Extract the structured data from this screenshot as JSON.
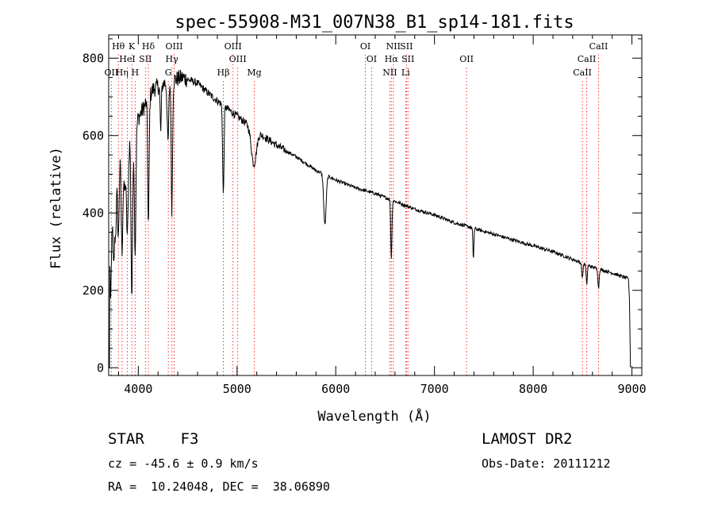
{
  "chart_data": {
    "type": "line",
    "title": "spec-55908-M31_007N38_B1_sp14-181.fits",
    "xlabel": "Wavelength (Å)",
    "ylabel": "Flux (relative)",
    "xlim": [
      3700,
      9100
    ],
    "ylim": [
      -20,
      860
    ],
    "xticks": [
      4000,
      5000,
      6000,
      7000,
      8000,
      9000
    ],
    "yticks": [
      0,
      200,
      400,
      600,
      800
    ],
    "grid": false,
    "line_color": "#000000",
    "marker_color": "#ff0000",
    "continuum": [
      [
        3700,
        380
      ],
      [
        3780,
        520
      ],
      [
        3850,
        580
      ],
      [
        3950,
        620
      ],
      [
        4050,
        670
      ],
      [
        4150,
        720
      ],
      [
        4300,
        740
      ],
      [
        4450,
        750
      ],
      [
        4600,
        735
      ],
      [
        4750,
        700
      ],
      [
        4900,
        670
      ],
      [
        5050,
        640
      ],
      [
        5200,
        610
      ],
      [
        5400,
        575
      ],
      [
        5600,
        545
      ],
      [
        5800,
        510
      ],
      [
        6000,
        485
      ],
      [
        6200,
        465
      ],
      [
        6400,
        450
      ],
      [
        6600,
        430
      ],
      [
        6800,
        410
      ],
      [
        7000,
        395
      ],
      [
        7200,
        375
      ],
      [
        7400,
        360
      ],
      [
        7600,
        345
      ],
      [
        7800,
        330
      ],
      [
        8000,
        315
      ],
      [
        8200,
        300
      ],
      [
        8400,
        280
      ],
      [
        8600,
        260
      ],
      [
        8800,
        245
      ],
      [
        8960,
        230
      ]
    ],
    "absorption": [
      [
        3720,
        240,
        8
      ],
      [
        3750,
        200,
        8
      ],
      [
        3770,
        150,
        8
      ],
      [
        3798,
        200,
        8
      ],
      [
        3835,
        260,
        8
      ],
      [
        3860,
        120,
        10
      ],
      [
        3889,
        250,
        10
      ],
      [
        3934,
        430,
        8
      ],
      [
        3968,
        330,
        8
      ],
      [
        4102,
        330,
        7
      ],
      [
        4227,
        120,
        6
      ],
      [
        4300,
        160,
        8
      ],
      [
        4340,
        330,
        7
      ],
      [
        4861,
        230,
        7
      ],
      [
        5170,
        90,
        25
      ],
      [
        5890,
        130,
        12
      ],
      [
        6563,
        150,
        6
      ],
      [
        7394,
        80,
        5
      ],
      [
        8498,
        40,
        6
      ],
      [
        8542,
        50,
        6
      ],
      [
        8662,
        50,
        6
      ]
    ],
    "lines": [
      {
        "name": "Hθ",
        "wavelength": 3798,
        "row": 1
      },
      {
        "name": "K",
        "wavelength": 3934,
        "row": 1
      },
      {
        "name": "Hδ",
        "wavelength": 4102,
        "row": 1
      },
      {
        "name": "OIII",
        "wavelength": 4363,
        "row": 1
      },
      {
        "name": "OIII",
        "wavelength": 4959,
        "row": 1
      },
      {
        "name": "OI",
        "wavelength": 6300,
        "row": 1
      },
      {
        "name": "NII",
        "wavelength": 6583,
        "row": 1
      },
      {
        "name": "SII",
        "wavelength": 6716,
        "row": 1
      },
      {
        "name": "CaII",
        "wavelength": 8662,
        "row": 1
      },
      {
        "name": "HeI",
        "wavelength": 3889,
        "row": 2
      },
      {
        "name": "SII",
        "wavelength": 4072,
        "row": 2
      },
      {
        "name": "Hγ",
        "wavelength": 4340,
        "row": 2
      },
      {
        "name": "OIII",
        "wavelength": 5007,
        "row": 2
      },
      {
        "name": "OI",
        "wavelength": 6363,
        "row": 2
      },
      {
        "name": "Hα",
        "wavelength": 6563,
        "row": 2
      },
      {
        "name": "SII",
        "wavelength": 6731,
        "row": 2
      },
      {
        "name": "OII",
        "wavelength": 7325,
        "row": 2
      },
      {
        "name": "CaII",
        "wavelength": 8542,
        "row": 2
      },
      {
        "name": "OII",
        "wavelength": 3727,
        "row": 3
      },
      {
        "name": "Hη",
        "wavelength": 3835,
        "row": 3
      },
      {
        "name": "H",
        "wavelength": 3968,
        "row": 3
      },
      {
        "name": "G",
        "wavelength": 4304,
        "row": 3
      },
      {
        "name": "Hβ",
        "wavelength": 4861,
        "row": 3
      },
      {
        "name": "Mg",
        "wavelength": 5175,
        "row": 3
      },
      {
        "name": "NII",
        "wavelength": 6548,
        "row": 3
      },
      {
        "name": "Li",
        "wavelength": 6708,
        "row": 3
      },
      {
        "name": "CaII",
        "wavelength": 8498,
        "row": 3
      }
    ]
  },
  "info": {
    "class": "STAR    F3",
    "survey": "LAMOST DR2",
    "cz": "cz = -45.6 ± 0.9 km/s",
    "obs_date": "Obs-Date: 20111212",
    "coords": "RA =  10.24048, DEC =  38.06890"
  }
}
